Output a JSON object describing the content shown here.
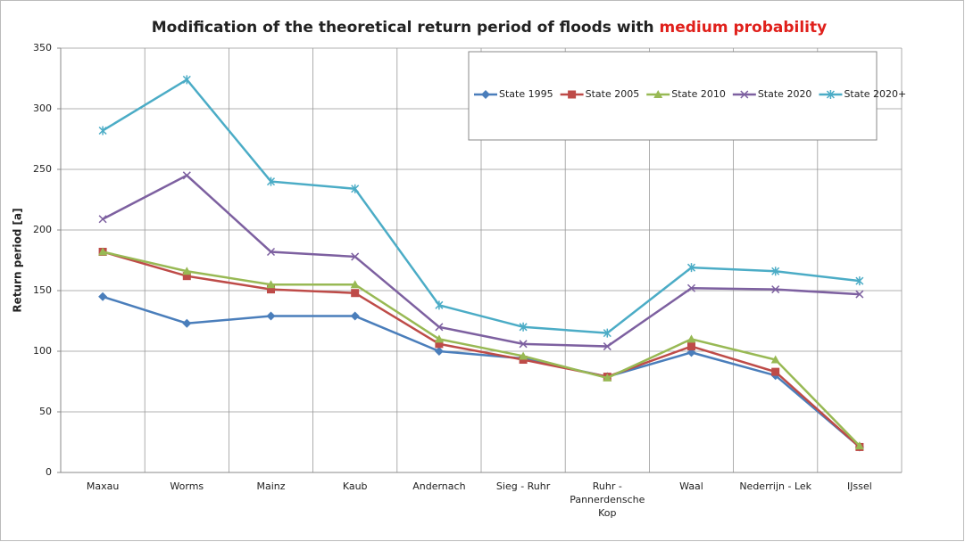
{
  "chart_data": {
    "type": "line",
    "title": "Modification of the theoretical return period of floods with",
    "title_highlight": "medium probability",
    "y_label": "Return period [a]",
    "categories": [
      "Maxau",
      "Worms",
      "Mainz",
      "Kaub",
      "Andernach",
      "Sieg - Ruhr",
      "Ruhr - Pannerdensche Kop",
      "Waal",
      "Nederrijn - Lek",
      "IJssel"
    ],
    "series": [
      {
        "name": "State 1995",
        "color": "#4a7ebb",
        "marker": "diamond",
        "values": [
          145,
          123,
          129,
          129,
          100,
          94,
          79,
          99,
          80,
          21
        ]
      },
      {
        "name": "State 2005",
        "color": "#be4b48",
        "marker": "square",
        "values": [
          182,
          162,
          151,
          148,
          106,
          93,
          79,
          104,
          83,
          21
        ]
      },
      {
        "name": "State 2010",
        "color": "#98b954",
        "marker": "triangle",
        "values": [
          182,
          166,
          155,
          155,
          110,
          96,
          78,
          110,
          93,
          22
        ]
      },
      {
        "name": "State 2020",
        "color": "#7d60a0",
        "marker": "x",
        "values": [
          209,
          245,
          182,
          178,
          120,
          106,
          104,
          152,
          151,
          147
        ]
      },
      {
        "name": "State 2020+",
        "color": "#4bacc6",
        "marker": "star",
        "values": [
          282,
          324,
          240,
          234,
          138,
          120,
          115,
          169,
          166,
          158
        ]
      }
    ],
    "ylim": [
      0,
      350
    ],
    "yticks": [
      0,
      50,
      100,
      150,
      200,
      250,
      300,
      350
    ],
    "grid": true,
    "legend": "top-right"
  }
}
